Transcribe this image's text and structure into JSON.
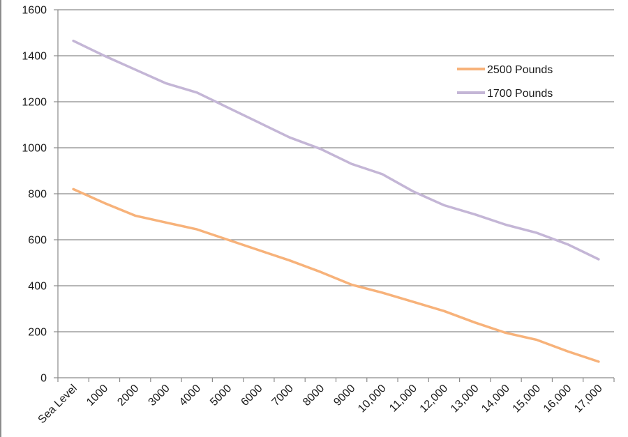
{
  "chart_data": {
    "type": "line",
    "title": "",
    "xlabel": "",
    "ylabel": "",
    "categories": [
      "Sea Level",
      "1000",
      "2000",
      "3000",
      "4000",
      "5000",
      "6000",
      "7000",
      "8000",
      "9000",
      "10,000",
      "11,000",
      "12,000",
      "13,000",
      "14,000",
      "15,000",
      "16,000",
      "17,000"
    ],
    "ylim": [
      0,
      1600
    ],
    "yticks": [
      "0",
      "200",
      "400",
      "600",
      "800",
      "1000",
      "1200",
      "1400",
      "1600"
    ],
    "grid": true,
    "legend_position": "top-right",
    "series": [
      {
        "name": "2500 Pounds",
        "color": "#f7b27a",
        "values": [
          820,
          760,
          705,
          675,
          645,
          600,
          555,
          510,
          460,
          405,
          370,
          330,
          290,
          240,
          195,
          165,
          115,
          70
        ]
      },
      {
        "name": "1700 Pounds",
        "color": "#c4b6d6",
        "values": [
          1465,
          1400,
          1340,
          1280,
          1240,
          1175,
          1110,
          1045,
          995,
          930,
          885,
          810,
          750,
          710,
          665,
          630,
          580,
          515
        ]
      }
    ]
  }
}
